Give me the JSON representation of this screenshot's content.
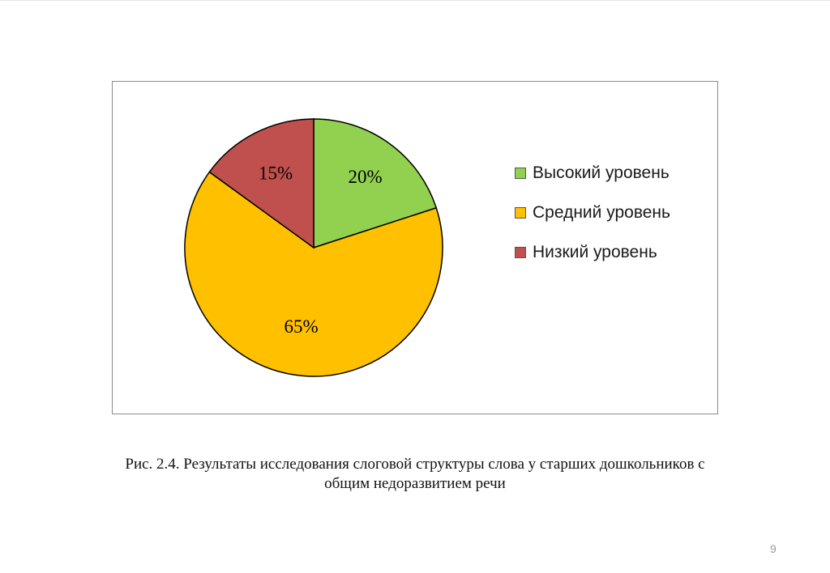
{
  "chart_data": {
    "type": "pie",
    "title": "",
    "categories": [
      "Высокий уровень",
      "Средний уровень",
      "Низкий уровень"
    ],
    "values": [
      20,
      65,
      15
    ],
    "value_labels": [
      "20%",
      "65%",
      "15%"
    ],
    "colors": [
      "#92d050",
      "#ffc000",
      "#c0504d"
    ],
    "legend_position": "right"
  },
  "caption": {
    "line1": "Рис. 2.4. Результаты исследования слоговой структуры слова у старших дошкольников с",
    "line2": "общим недоразвитием речи"
  },
  "page_number": "9"
}
